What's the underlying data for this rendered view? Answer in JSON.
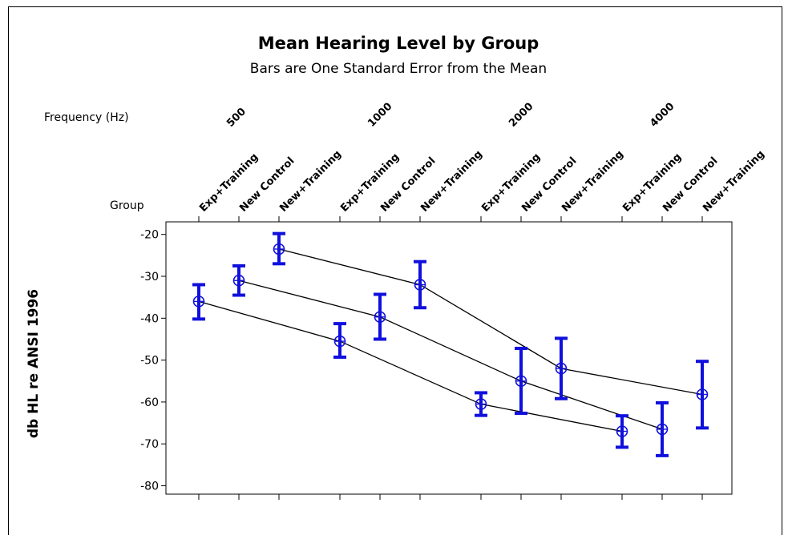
{
  "chart_data": {
    "type": "line",
    "title": "Mean Hearing Level by Group",
    "subtitle": "Bars are One Standard Error from the Mean",
    "ylabel": "db HL re ANSI 1996",
    "frequency_axis_label": "Frequency (Hz)",
    "group_axis_label": "Group",
    "frequencies": [
      "500",
      "1000",
      "2000",
      "4000"
    ],
    "groups": [
      "Exp+Training",
      "New Control",
      "New+Training"
    ],
    "ylim": [
      -82,
      -17
    ],
    "yticks": [
      -20,
      -30,
      -40,
      -50,
      -60,
      -70,
      -80
    ],
    "series": [
      {
        "group": "Exp+Training",
        "values": [
          -36,
          -45.5,
          -60.5,
          -67
        ],
        "se_low": [
          -40.2,
          -49.3,
          -63.2,
          -70.8
        ],
        "se_high": [
          -32,
          -41.3,
          -57.8,
          -63.3
        ]
      },
      {
        "group": "New Control",
        "values": [
          -31,
          -39.7,
          -55,
          -66.5
        ],
        "se_low": [
          -34.5,
          -45,
          -62.7,
          -72.8
        ],
        "se_high": [
          -27.5,
          -34.3,
          -47.2,
          -60.2
        ]
      },
      {
        "group": "New+Training",
        "values": [
          -23.5,
          -32,
          -52,
          -58.2
        ],
        "se_low": [
          -27,
          -37.5,
          -59.2,
          -66.2
        ],
        "se_high": [
          -19.8,
          -26.5,
          -44.8,
          -50.3
        ]
      }
    ],
    "colors": {
      "marker": "#1010dd",
      "line": "#000000"
    },
    "legend": "none",
    "grid": false
  }
}
